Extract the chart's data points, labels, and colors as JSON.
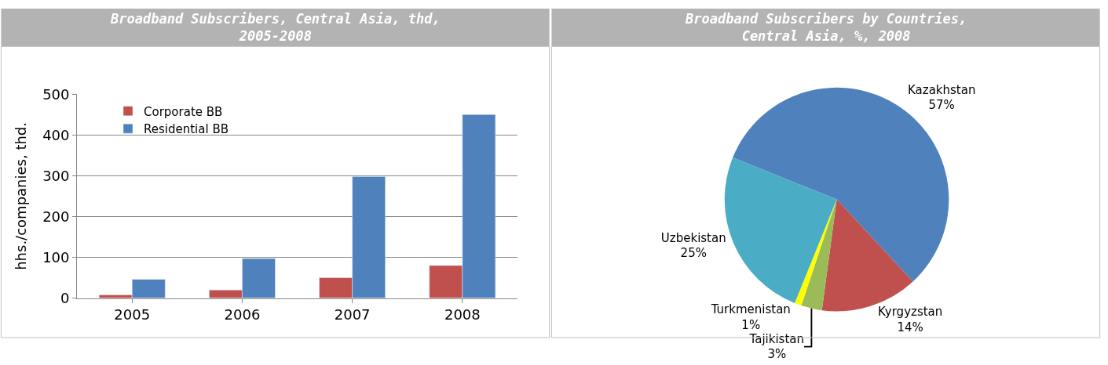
{
  "chart_data": [
    {
      "type": "bar",
      "title": "Broadband Subscribers, Central Asia, thd, 2005-2008",
      "ylabel": "hhs./companies, thd.",
      "categories": [
        "2005",
        "2006",
        "2007",
        "2008"
      ],
      "series": [
        {
          "name": "Corporate BB",
          "color": "#c0504d",
          "values": [
            8,
            20,
            50,
            80
          ]
        },
        {
          "name": "Residential BB",
          "color": "#4f81bd",
          "values": [
            46,
            97,
            298,
            450
          ]
        }
      ],
      "ylim": [
        0,
        500
      ],
      "yticks": [
        0,
        100,
        200,
        300,
        400,
        500
      ],
      "grid": "y",
      "legend": "top left"
    },
    {
      "type": "pie",
      "title": "Broadband Subscribers by Countries, Central Asia, %, 2008",
      "categories": [
        "Kazakhstan",
        "Kyrgyzstan",
        "Tajikistan",
        "Turkmenistan",
        "Uzbekistan"
      ],
      "values": [
        57,
        14,
        3,
        1,
        25
      ],
      "value_labels": [
        "57%",
        "14%",
        "3%",
        "1%",
        "25%"
      ],
      "colors": [
        "#4f81bd",
        "#c0504d",
        "#9bbb59",
        "#ffff00",
        "#4bacc6"
      ]
    }
  ]
}
